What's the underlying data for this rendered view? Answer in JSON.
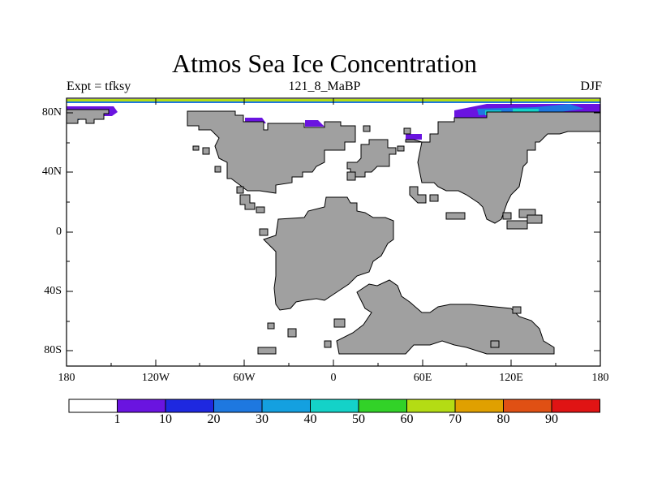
{
  "title": "Atmos Sea Ice Concentration",
  "subtitle": {
    "left": "Expt = tfksy",
    "center": "121_8_MaBP",
    "right": "DJF"
  },
  "map": {
    "projection": "cylindrical-equidistant",
    "lon_range": [
      -180,
      180
    ],
    "lat_range": [
      -90,
      90
    ],
    "x_tick_labels": [
      "180",
      "120W",
      "60W",
      "0",
      "60E",
      "120E",
      "180"
    ],
    "y_tick_labels": [
      "80N",
      "40N",
      "0",
      "40S",
      "80S"
    ],
    "land_color": "#a0a0a0",
    "coast_color": "#000000"
  },
  "colorbar": {
    "colors": [
      "#ffffff",
      "#6a14e0",
      "#1e28e0",
      "#1e78e0",
      "#14a0e0",
      "#14d2c8",
      "#32d228",
      "#b4dc14",
      "#e0a000",
      "#e05014",
      "#e01414"
    ],
    "labels": [
      "1",
      "10",
      "20",
      "30",
      "40",
      "50",
      "60",
      "70",
      "80",
      "90"
    ]
  }
}
